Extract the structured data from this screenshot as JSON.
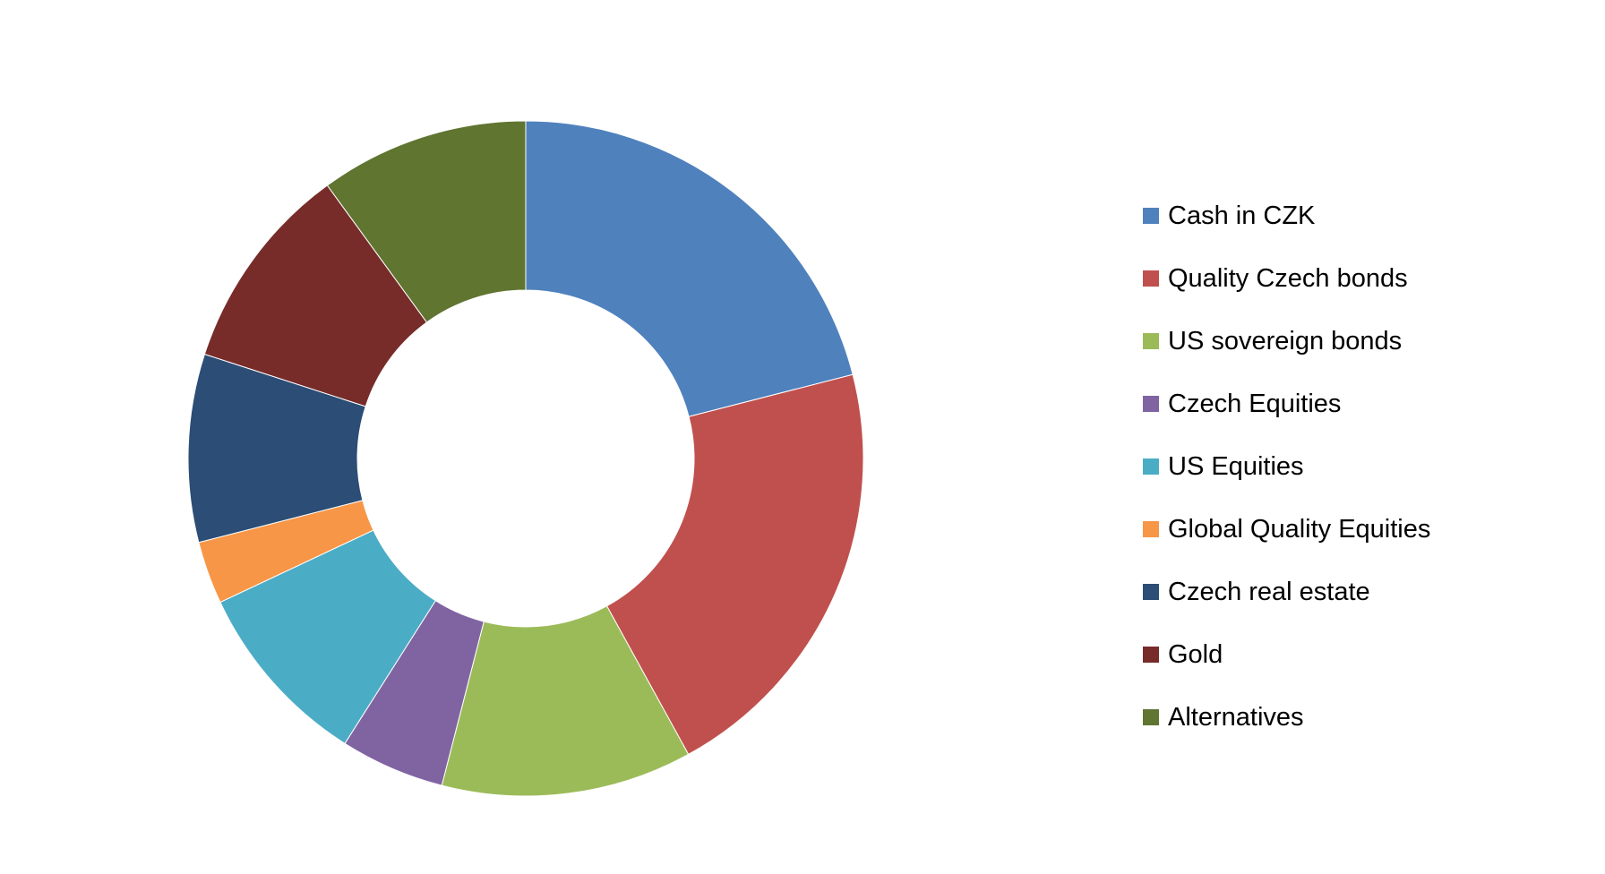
{
  "chart_data": {
    "type": "pie",
    "donut": true,
    "title": "",
    "legend_position": "right",
    "slices": [
      {
        "label": "Cash in CZK",
        "value": 21,
        "color": "#4F81BD"
      },
      {
        "label": "Quality Czech bonds",
        "value": 21,
        "color": "#C0504D"
      },
      {
        "label": "US sovereign bonds",
        "value": 12,
        "color": "#9BBB59"
      },
      {
        "label": "Czech Equities",
        "value": 5,
        "color": "#8064A2"
      },
      {
        "label": "US Equities",
        "value": 9,
        "color": "#4BACC6"
      },
      {
        "label": "Global Quality Equities",
        "value": 3,
        "color": "#F79646"
      },
      {
        "label": "Czech real estate",
        "value": 9,
        "color": "#2C4D75"
      },
      {
        "label": "Gold",
        "value": 10,
        "color": "#772C2A"
      },
      {
        "label": "Alternatives",
        "value": 10,
        "color": "#5F7530"
      }
    ]
  }
}
